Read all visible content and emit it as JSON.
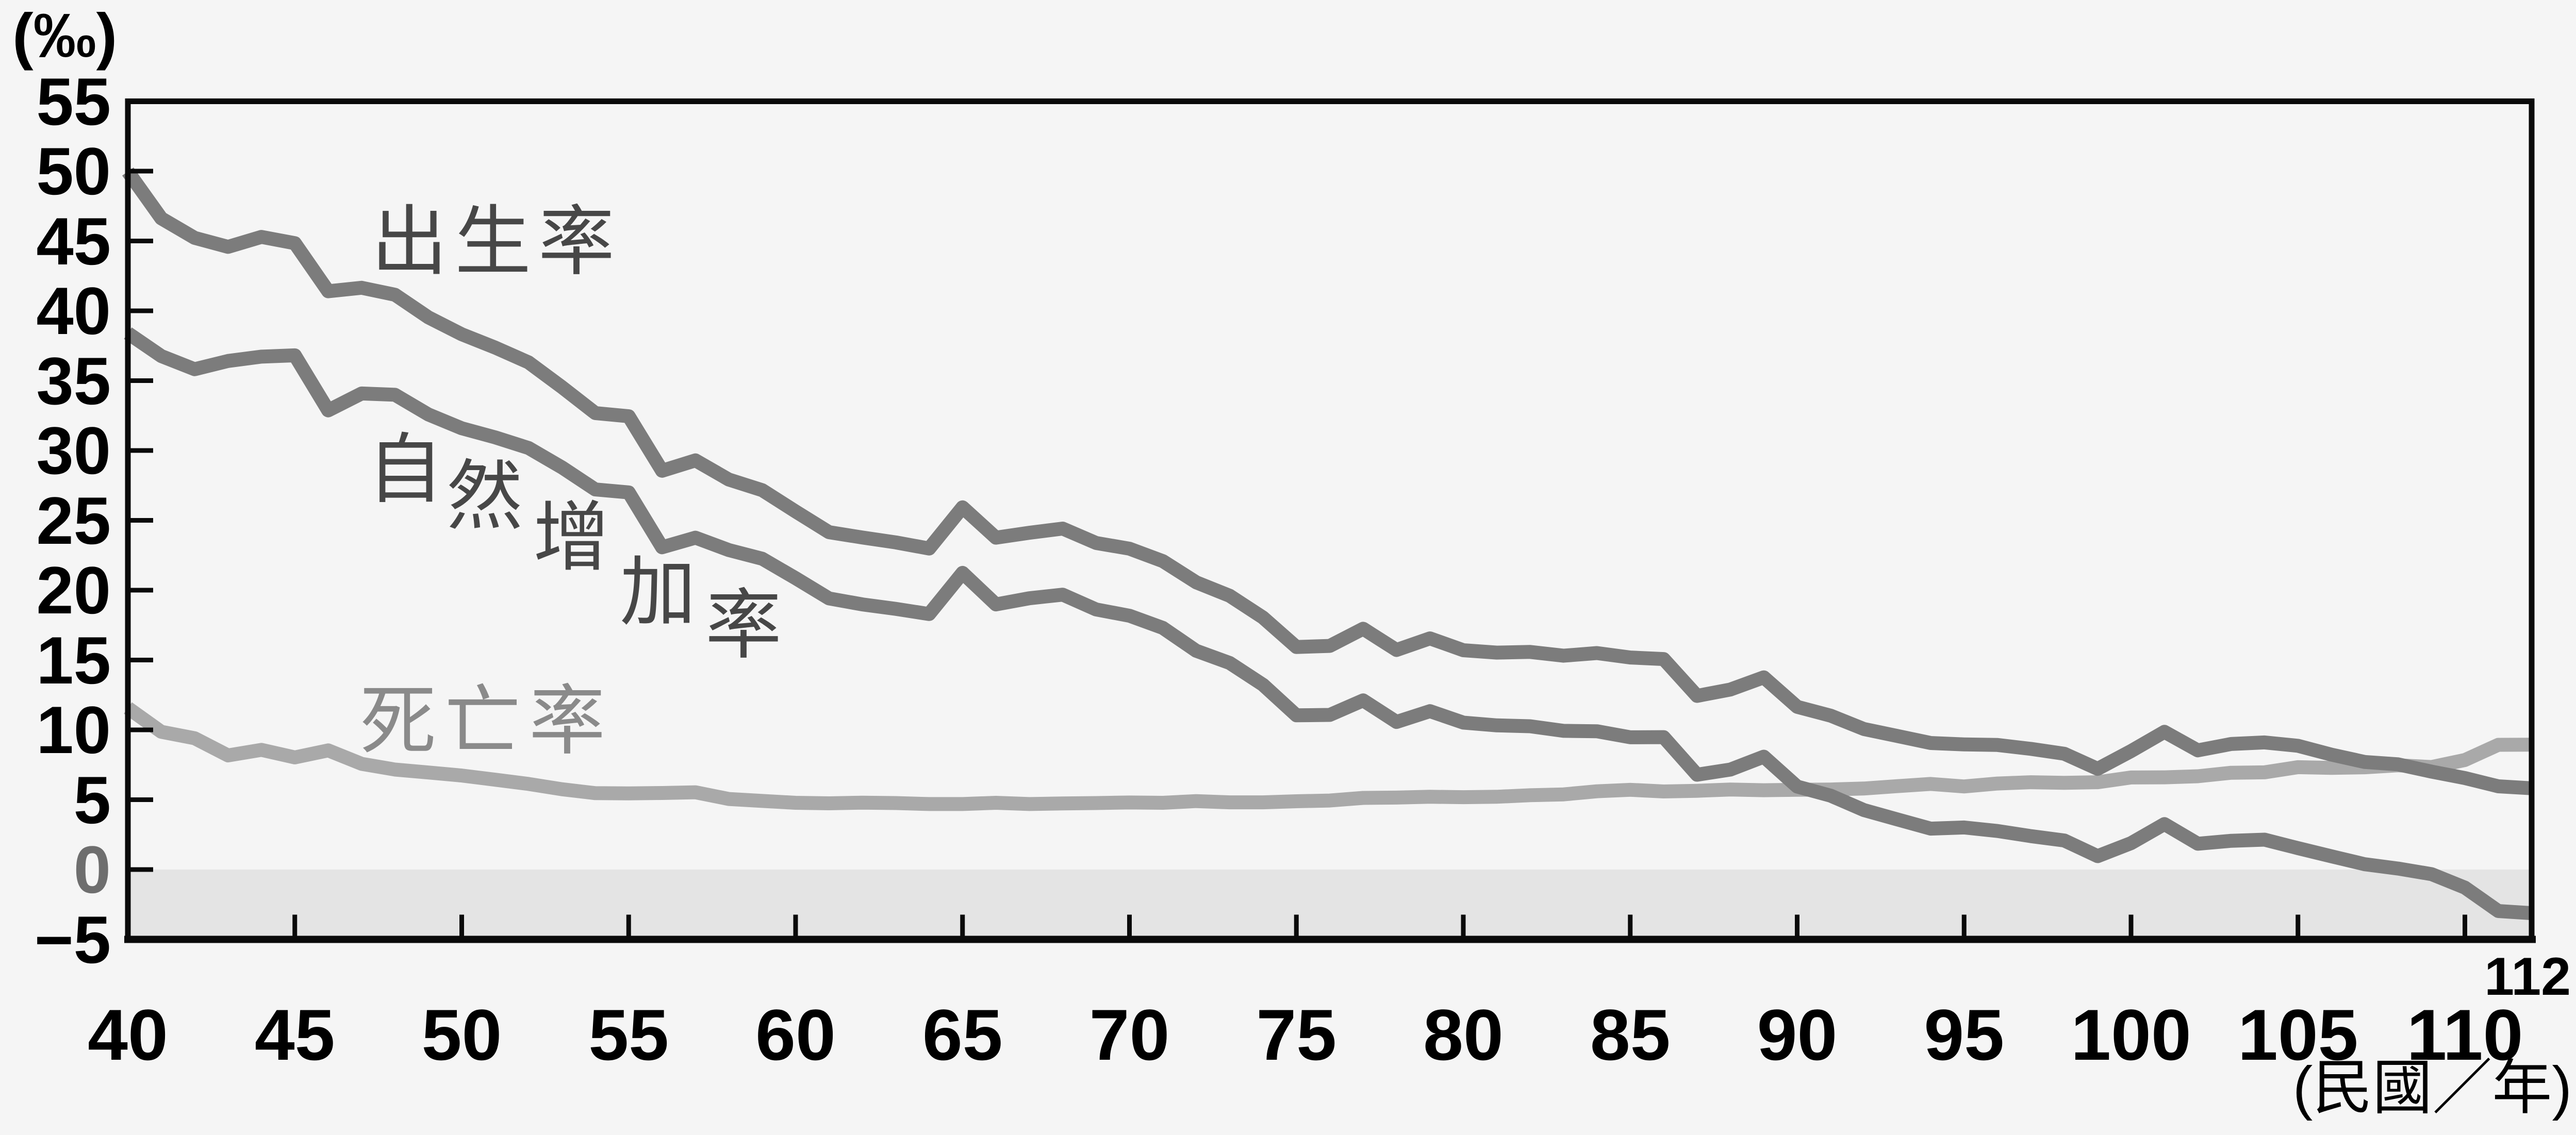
{
  "page": {
    "background": "#f5f5f5"
  },
  "colors": {
    "axis": "#0a0a0a",
    "tick_label": "#000000",
    "zero_tick_label": "#6e6e6e",
    "negative_band": "#e4e4e4",
    "dark_series": "#7c7c7c",
    "light_series": "#a9a9a9",
    "dark_series_label": "#474747",
    "light_series_label": "#8a8a8a"
  },
  "chart_data": {
    "type": "line",
    "title": "",
    "ylabel": "(‰)",
    "xlabel": "(民國／年)",
    "x_last_tick_label": "112",
    "ylim": [
      -5,
      55
    ],
    "xlim": [
      40,
      112
    ],
    "y_tick_step": 5,
    "y_ticks": [
      55,
      50,
      45,
      40,
      35,
      30,
      25,
      20,
      15,
      10,
      5,
      0,
      -5
    ],
    "x_ticks": [
      40,
      45,
      50,
      55,
      60,
      65,
      70,
      75,
      80,
      85,
      90,
      95,
      100,
      105,
      110
    ],
    "grid": false,
    "legend": "inline-labels",
    "negative_region_shaded": true,
    "x": [
      40,
      41,
      42,
      43,
      44,
      45,
      46,
      47,
      48,
      49,
      50,
      51,
      52,
      53,
      54,
      55,
      56,
      57,
      58,
      59,
      60,
      61,
      62,
      63,
      64,
      65,
      66,
      67,
      68,
      69,
      70,
      71,
      72,
      73,
      74,
      75,
      76,
      77,
      78,
      79,
      80,
      81,
      82,
      83,
      84,
      85,
      86,
      87,
      88,
      89,
      90,
      91,
      92,
      93,
      94,
      95,
      96,
      97,
      98,
      99,
      100,
      101,
      102,
      103,
      104,
      105,
      106,
      107,
      108,
      109,
      110,
      111,
      112
    ],
    "series": [
      {
        "id": "birth-rate",
        "name": "出生率",
        "color": "#7c7c7c",
        "values": [
          49.97,
          46.62,
          45.22,
          44.58,
          45.29,
          44.84,
          41.4,
          41.65,
          41.15,
          39.53,
          38.32,
          37.37,
          36.31,
          34.54,
          32.68,
          32.45,
          28.55,
          29.29,
          27.92,
          27.16,
          25.64,
          24.15,
          23.77,
          23.42,
          22.98,
          25.93,
          23.76,
          24.11,
          24.41,
          23.38,
          22.97,
          22.08,
          20.56,
          19.6,
          18.04,
          15.93,
          16.01,
          17.24,
          15.72,
          16.55,
          15.7,
          15.53,
          15.58,
          15.31,
          15.5,
          15.18,
          15.07,
          12.43,
          12.89,
          13.76,
          11.65,
          11.02,
          10.06,
          9.56,
          9.06,
          8.96,
          8.92,
          8.64,
          8.29,
          7.21,
          8.48,
          9.86,
          8.53,
          8.99,
          9.1,
          8.86,
          8.23,
          7.7,
          7.53,
          7.01,
          6.55,
          5.96,
          5.82
        ]
      },
      {
        "id": "natural-increase-rate",
        "name": "自然增加率",
        "color": "#7c7c7c",
        "values": [
          38.4,
          36.76,
          35.82,
          36.41,
          36.72,
          36.81,
          32.87,
          34.08,
          33.99,
          32.58,
          31.59,
          30.94,
          30.18,
          28.79,
          27.21,
          27.0,
          23.07,
          23.76,
          22.87,
          22.25,
          20.86,
          19.41,
          18.98,
          18.66,
          18.29,
          21.24,
          18.98,
          19.42,
          19.68,
          18.62,
          18.17,
          17.3,
          15.66,
          14.79,
          13.23,
          11.04,
          11.07,
          12.11,
          10.57,
          11.34,
          10.52,
          10.32,
          10.26,
          9.93,
          9.9,
          9.47,
          9.48,
          6.79,
          7.16,
          8.08,
          5.94,
          5.29,
          4.26,
          3.59,
          2.93,
          3.01,
          2.76,
          2.39,
          2.08,
          0.96,
          1.89,
          3.26,
          1.85,
          2.06,
          2.14,
          1.53,
          0.95,
          0.38,
          0.07,
          -0.33,
          -1.29,
          -2.97,
          -3.12
        ]
      },
      {
        "id": "death-rate",
        "name": "死亡率",
        "color": "#a9a9a9",
        "values": [
          11.57,
          9.86,
          9.4,
          8.17,
          8.57,
          8.03,
          8.53,
          7.57,
          7.16,
          6.95,
          6.73,
          6.43,
          6.13,
          5.75,
          5.47,
          5.45,
          5.48,
          5.53,
          5.05,
          4.91,
          4.78,
          4.74,
          4.79,
          4.76,
          4.69,
          4.69,
          4.78,
          4.69,
          4.73,
          4.76,
          4.8,
          4.78,
          4.9,
          4.81,
          4.81,
          4.89,
          4.94,
          5.13,
          5.15,
          5.21,
          5.18,
          5.21,
          5.32,
          5.38,
          5.6,
          5.71,
          5.59,
          5.64,
          5.73,
          5.68,
          5.71,
          5.73,
          5.8,
          5.97,
          6.13,
          5.95,
          6.16,
          6.25,
          6.21,
          6.25,
          6.59,
          6.6,
          6.68,
          6.93,
          6.96,
          7.33,
          7.28,
          7.32,
          7.46,
          7.34,
          7.84,
          8.93,
          8.94
        ]
      }
    ]
  }
}
